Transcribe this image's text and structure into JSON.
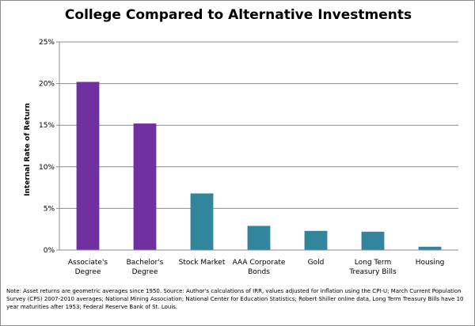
{
  "chart_data": {
    "type": "bar",
    "title": "College Compared to Alternative Investments",
    "xlabel": "",
    "ylabel": "Internal Rate of Return",
    "categories": [
      "Associate's\nDegree",
      "Bachelor's\nDegree",
      "Stock Market",
      "AAA Corporate\nBonds",
      "Gold",
      "Long Term\nTreasury Bills",
      "Housing"
    ],
    "values": [
      20.2,
      15.2,
      6.8,
      2.9,
      2.3,
      2.2,
      0.4
    ],
    "bar_colors": [
      "#7030a0",
      "#7030a0",
      "#31859c",
      "#31859c",
      "#31859c",
      "#31859c",
      "#31859c"
    ],
    "ylim": [
      0,
      25
    ],
    "yticks": [
      0,
      5,
      10,
      15,
      20,
      25
    ],
    "ytick_labels": [
      "0%",
      "5%",
      "10%",
      "15%",
      "20%",
      "25%"
    ],
    "grid": true,
    "legend": "none"
  },
  "footnote": "Note: Asset returns are geometric averages since 1950. Source: Author's calculations of IRR, values adjusted for inflation using the CPI-U; March Current Population Survey (CPS) 2007-2010 averages; National Mining Association; National Center for Education Statistics; Robert Shiller online data, Long Term Treasury Bills have 10 year maturities after 1953; Federal Reserve Bank of St. Louis."
}
